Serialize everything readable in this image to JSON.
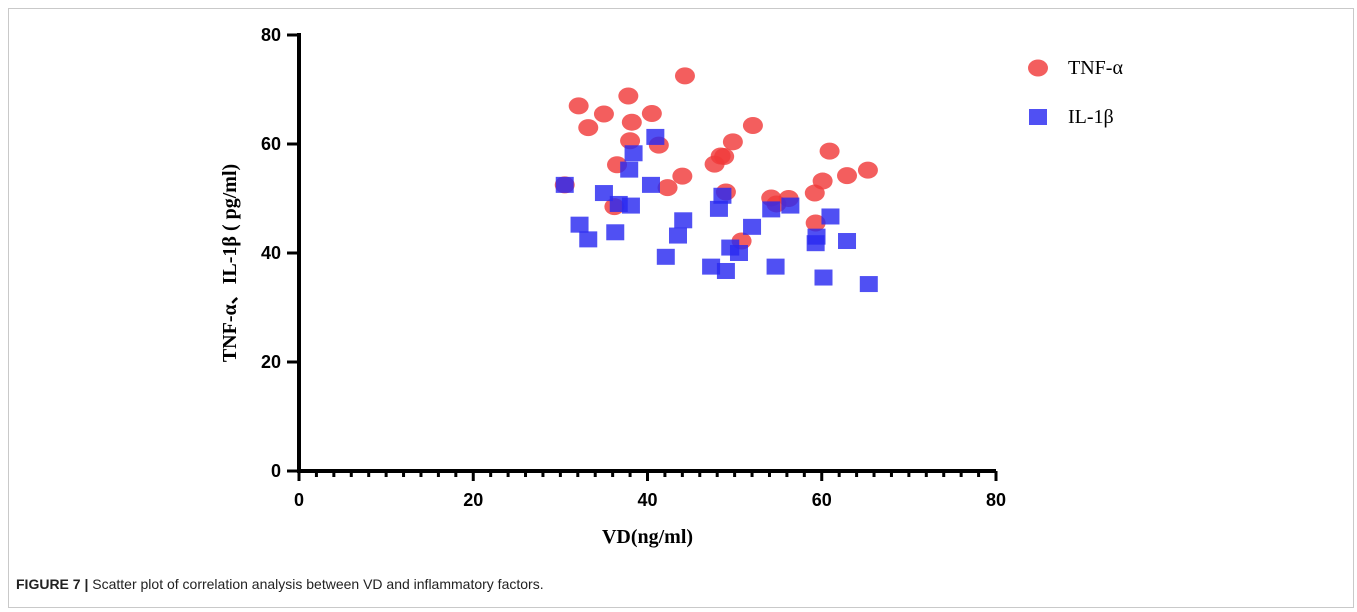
{
  "caption": {
    "label": "FIGURE 7 |",
    "text": " Scatter plot of correlation analysis between VD and inflammatory factors."
  },
  "chart_data": {
    "type": "scatter",
    "xlabel": "VD(ng/ml)",
    "ylabel": "TNF-α、IL-1β ( pg/ml)",
    "xlim": [
      0,
      80
    ],
    "ylim": [
      0,
      80
    ],
    "xticks": [
      0,
      20,
      40,
      60,
      80
    ],
    "yticks": [
      0,
      20,
      40,
      60,
      80
    ],
    "grid": false,
    "legend_position": "top-right",
    "series": [
      {
        "name": "TNF-α",
        "marker": "circle",
        "color": "#f03a3a",
        "x": [
          30.5,
          32.1,
          33.2,
          35,
          36.5,
          36.2,
          37.8,
          38.2,
          38,
          40.5,
          41.3,
          42.3,
          44,
          44.3,
          47.7,
          48.4,
          48.8,
          49,
          49.8,
          50.8,
          52.1,
          54.2,
          54.8,
          56.2,
          59.2,
          59.3,
          60.1,
          60.9,
          62.9,
          65.3
        ],
        "y": [
          52.5,
          67,
          63,
          65.5,
          56.2,
          48.5,
          68.8,
          64,
          60.6,
          65.6,
          59.8,
          52,
          54.1,
          72.5,
          56.3,
          57.8,
          57.7,
          51.2,
          60.4,
          42.2,
          63.4,
          50.1,
          49,
          50,
          51,
          45.5,
          53.2,
          58.7,
          54.2,
          55.2
        ]
      },
      {
        "name": "IL-1β",
        "marker": "square",
        "color": "#2a2af0",
        "x": [
          30.5,
          32.2,
          33.2,
          35,
          36.3,
          36.7,
          37.9,
          38.1,
          38.4,
          40.4,
          40.9,
          42.1,
          43.5,
          44.1,
          47.3,
          48.2,
          48.6,
          49,
          49.5,
          50.5,
          52,
          54.2,
          54.7,
          56.4,
          59.3,
          59.4,
          60.2,
          61,
          62.9,
          65.4
        ],
        "y": [
          52.5,
          45.2,
          42.5,
          51,
          43.8,
          49,
          55.3,
          48.7,
          58.3,
          52.5,
          61.3,
          39.3,
          43.2,
          46,
          37.5,
          48.1,
          50.5,
          36.7,
          41,
          40,
          44.8,
          48,
          37.5,
          48.7,
          41.8,
          43,
          35.5,
          46.7,
          42.2,
          34.3
        ]
      }
    ]
  }
}
